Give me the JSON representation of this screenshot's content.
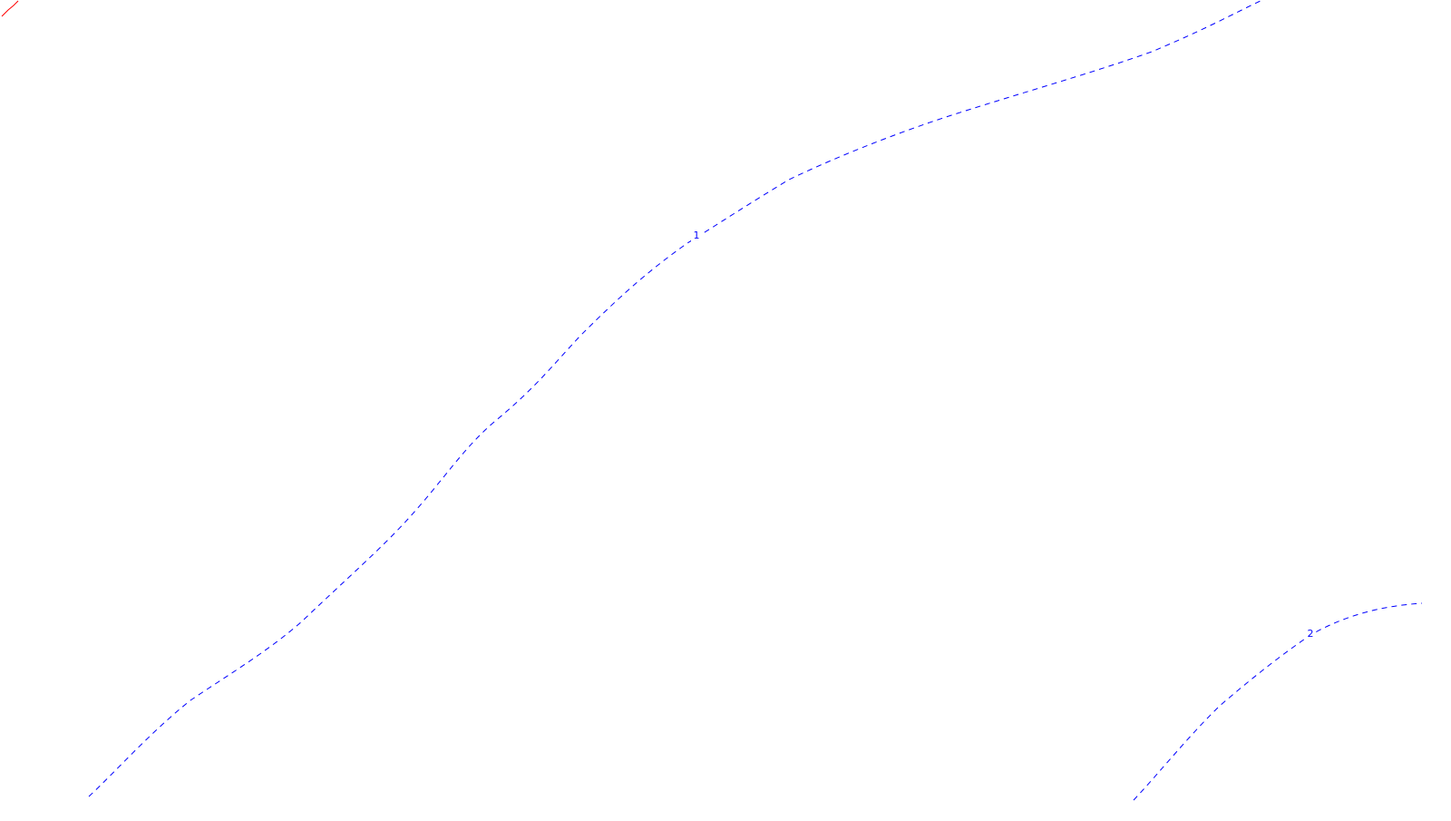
{
  "map": {
    "background_color": "#ffffff",
    "contours": [
      {
        "label": "1",
        "color": "#0000ff",
        "line_style": "dashed"
      },
      {
        "label": "2",
        "color": "#0000ff",
        "line_style": "dashed"
      }
    ],
    "accent_line": {
      "color": "#ff0000",
      "line_style": "solid"
    }
  }
}
